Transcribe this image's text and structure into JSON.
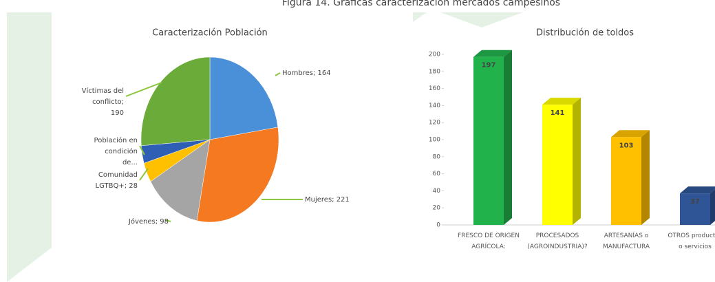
{
  "caption": "Figura 14. Gráficas caracterización mercados campesinos",
  "chart_data": [
    {
      "type": "pie",
      "title": "Caracterización Población",
      "categories": [
        "Hombres; 164",
        "Mujeres; 221",
        "Jóvenes; 98",
        "Comunidad LGTBQ+; 28",
        "Población en condición de...",
        "Víctimas del conflicto; 190"
      ],
      "values": [
        164,
        221,
        98,
        28,
        25,
        190
      ],
      "colors": [
        "#4a90d9",
        "#f47920",
        "#a5a5a5",
        "#ffc000",
        "#2e5fb5",
        "#6aab3a"
      ]
    },
    {
      "type": "bar",
      "title": "Distribución de toldos",
      "categories": [
        "FRESCO DE ORIGEN AGRÍCOLA:",
        "PROCESADOS (AGROINDUSTRIA)?",
        "ARTESANÍAS o MANUFACTURA",
        "OTROS productos o servicios"
      ],
      "values": [
        197,
        141,
        103,
        37
      ],
      "colors": [
        "#22b24c",
        "#ffff00",
        "#ffc000",
        "#2f5597"
      ],
      "ylim": [
        0,
        200
      ],
      "yticks": [
        0,
        20,
        40,
        60,
        80,
        100,
        120,
        140,
        160,
        180,
        200
      ]
    }
  ]
}
